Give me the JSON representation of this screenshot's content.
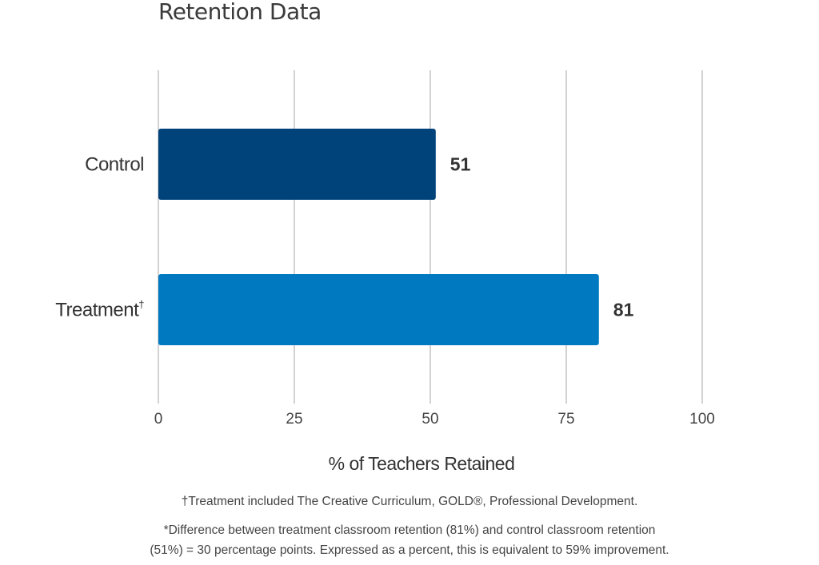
{
  "chart_data": {
    "type": "bar",
    "orientation": "horizontal",
    "title": "Retention Data",
    "categories": [
      "Control",
      "Treatment"
    ],
    "category_superscripts": [
      "",
      "†"
    ],
    "values": [
      51,
      81
    ],
    "data_labels": [
      "51",
      "81"
    ],
    "colors": [
      "#00427a",
      "#0079c1"
    ],
    "xlabel": "% of Teachers Retained",
    "ylabel": "",
    "xlim": [
      0,
      100
    ],
    "xticks": [
      0,
      25,
      50,
      75,
      100
    ],
    "grid": true
  },
  "footnotes": {
    "dagger": "†Treatment included The Creative Curriculum, GOLD®, Professional Development.",
    "line1": "*Difference between treatment classroom retention (81%) and control classroom retention",
    "line2": "(51%) = 30 percentage points. Expressed as a percent, this is equivalent to 59% improvement."
  }
}
